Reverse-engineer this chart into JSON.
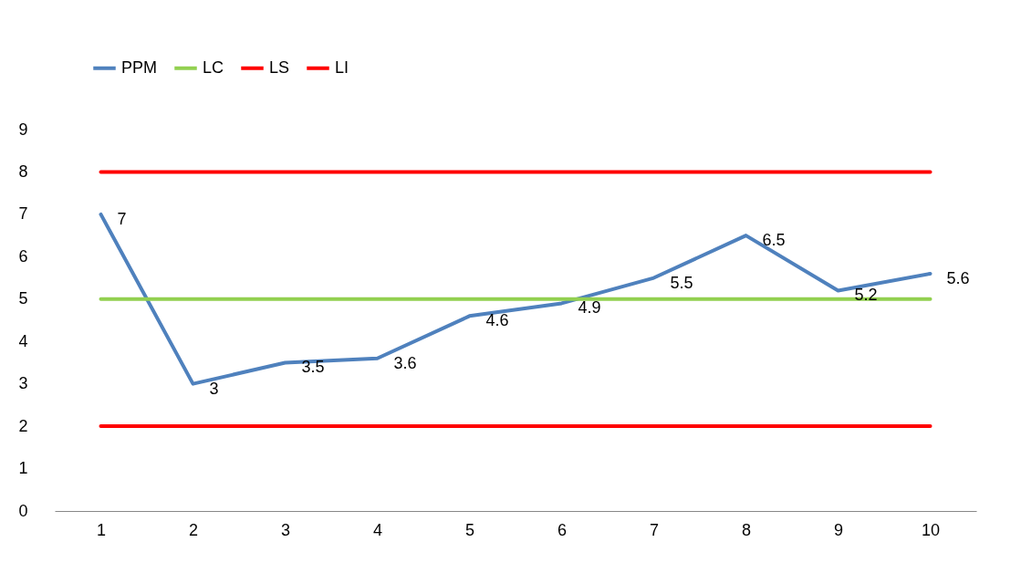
{
  "chart_data": {
    "type": "line",
    "categories": [
      "1",
      "2",
      "3",
      "4",
      "5",
      "6",
      "7",
      "8",
      "9",
      "10"
    ],
    "series": [
      {
        "name": "PPM",
        "color": "#4f81bd",
        "values": [
          7,
          3,
          3.5,
          3.6,
          4.6,
          4.9,
          5.5,
          6.5,
          5.2,
          5.6
        ],
        "value_labels": [
          "7",
          "3",
          "3.5",
          "3.6",
          "4.6",
          "4.9",
          "5.5",
          "6.5",
          "5.2",
          "5.6"
        ]
      },
      {
        "name": "LC",
        "color": "#92d050",
        "values": [
          5,
          5,
          5,
          5,
          5,
          5,
          5,
          5,
          5,
          5
        ]
      },
      {
        "name": "LS",
        "color": "#ff0000",
        "values": [
          8,
          8,
          8,
          8,
          8,
          8,
          8,
          8,
          8,
          8
        ]
      },
      {
        "name": "LI",
        "color": "#ff0000",
        "values": [
          2,
          2,
          2,
          2,
          2,
          2,
          2,
          2,
          2,
          2
        ]
      }
    ],
    "ylim": [
      0,
      9
    ],
    "yticks": [
      0,
      1,
      2,
      3,
      4,
      5,
      6,
      7,
      8,
      9
    ],
    "grid": false,
    "legend": "top",
    "marker": "none",
    "line_style": "solid"
  }
}
